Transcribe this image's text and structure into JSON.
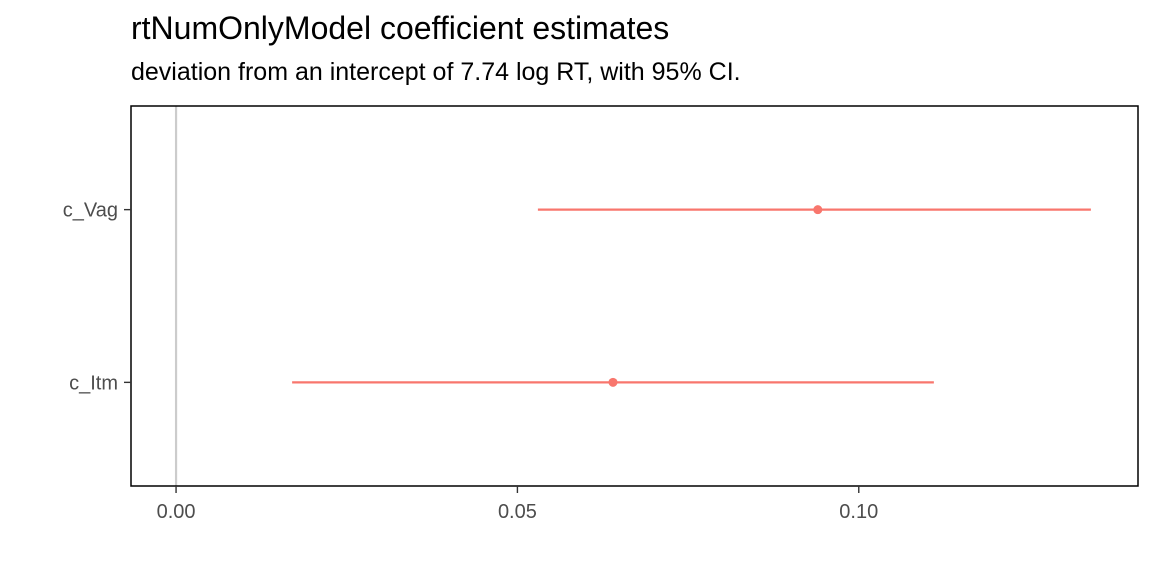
{
  "chart_data": {
    "type": "scatter",
    "title": "rtNumOnlyModel coefficient estimates",
    "subtitle": "deviation from an intercept of 7.74 log RT, with 95% CI.",
    "xlabel": "",
    "ylabel": "",
    "xlim": [
      -0.0066,
      0.1409
    ],
    "x_ticks": [
      0.0,
      0.05,
      0.1
    ],
    "x_tick_labels": [
      "0.00",
      "0.05",
      "0.10"
    ],
    "categories": [
      "c_Itm",
      "c_Vag"
    ],
    "series": [
      {
        "estimates": [
          0.064,
          0.094
        ],
        "ci_low": [
          0.017,
          0.053
        ],
        "ci_high": [
          0.111,
          0.134
        ]
      }
    ],
    "reference_line_x": 0,
    "grid": false,
    "legend": "none",
    "colors": {
      "point": "#F8766D",
      "reference_line": "#CCCCCC",
      "axis": "#333333",
      "panel_border": "#000000"
    }
  }
}
